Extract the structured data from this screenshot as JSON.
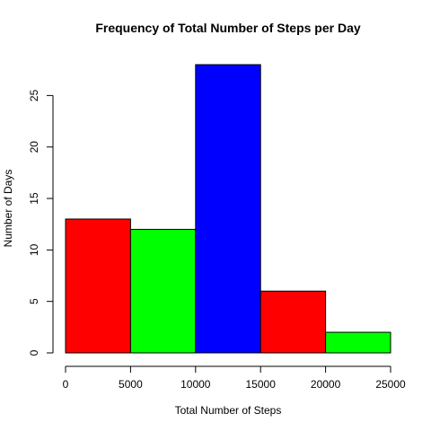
{
  "chart_data": {
    "type": "bar",
    "title": "Frequency of Total Number of Steps per Day",
    "xlabel": "Total Number of Steps",
    "ylabel": "Number of Days",
    "bins": [
      {
        "start": 0,
        "end": 5000,
        "value": 13,
        "color": "#ff0000"
      },
      {
        "start": 5000,
        "end": 10000,
        "value": 12,
        "color": "#00ff00"
      },
      {
        "start": 10000,
        "end": 15000,
        "value": 28,
        "color": "#0000ff"
      },
      {
        "start": 15000,
        "end": 20000,
        "value": 6,
        "color": "#ff0000"
      },
      {
        "start": 20000,
        "end": 25000,
        "value": 2,
        "color": "#00ff00"
      }
    ],
    "xlim": [
      0,
      25000
    ],
    "ylim": [
      0,
      28
    ],
    "x_ticks": [
      0,
      5000,
      10000,
      15000,
      20000,
      25000
    ],
    "x_tick_labels": [
      "0",
      "5000",
      "10000",
      "15000",
      "20000",
      "25000"
    ],
    "y_ticks": [
      0,
      5,
      10,
      15,
      20,
      25
    ],
    "y_tick_labels": [
      "0",
      "5",
      "10",
      "15",
      "20",
      "25"
    ],
    "grid": false,
    "legend": "none"
  }
}
